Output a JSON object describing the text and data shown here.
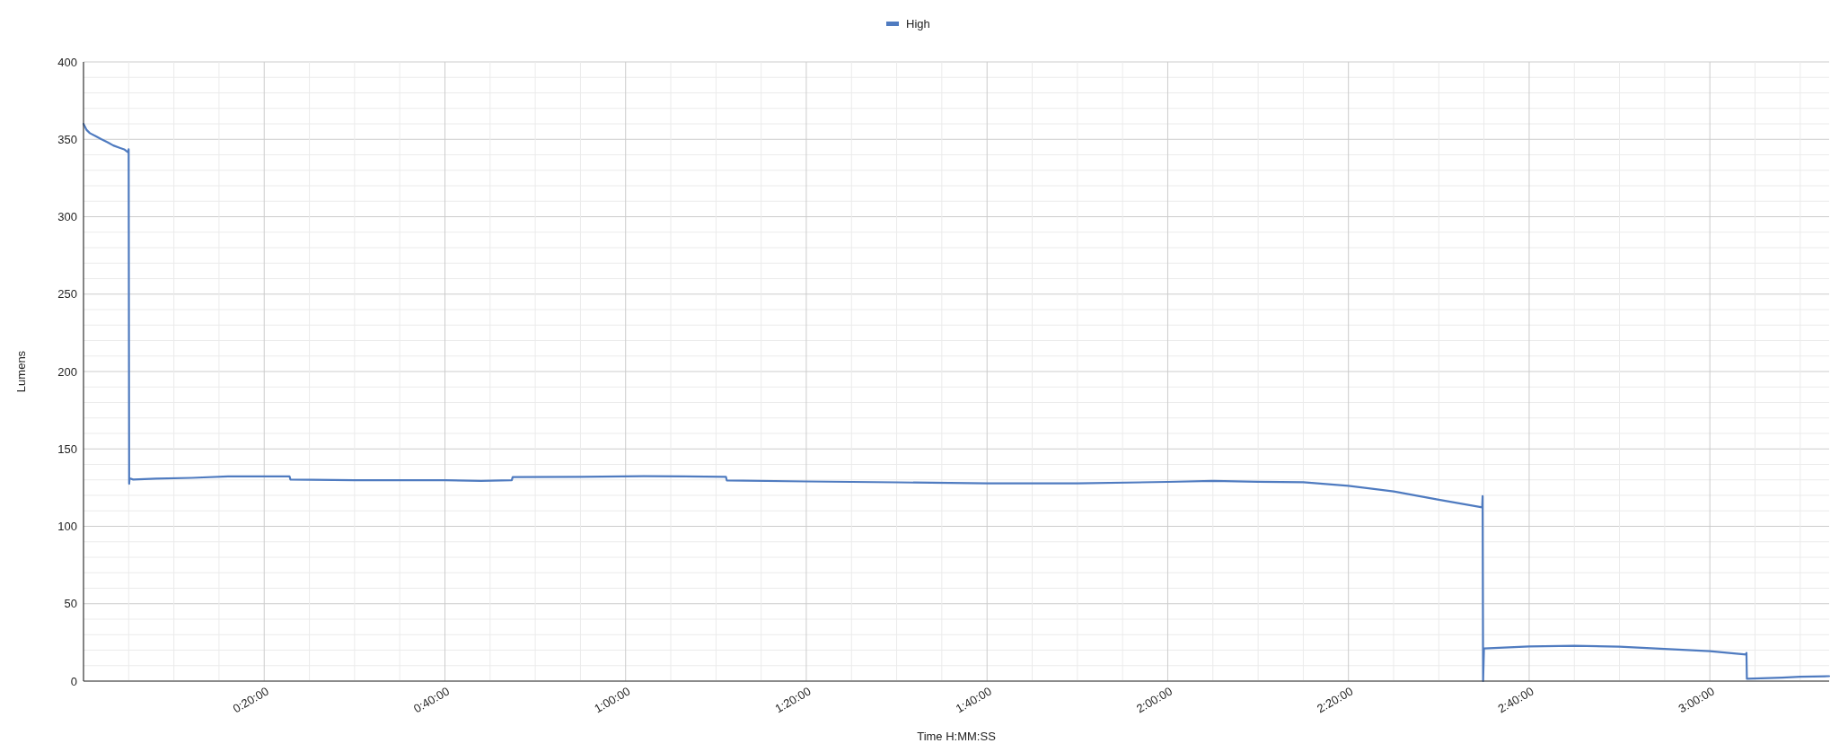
{
  "chart_data": {
    "type": "line",
    "xlabel": "Time H:MM:SS",
    "ylabel": "Lumens",
    "legend": "top",
    "grid": true,
    "xlim": [
      0,
      3.22
    ],
    "ylim": [
      0,
      400
    ],
    "xticks": [
      {
        "value": 0.0833,
        "label": null
      },
      {
        "value": 0.1667,
        "label": null
      },
      {
        "value": 0.25,
        "label": null
      },
      {
        "value": 0.3333,
        "label": "0:20:00"
      },
      {
        "value": 0.4167,
        "label": null
      },
      {
        "value": 0.5,
        "label": null
      },
      {
        "value": 0.5833,
        "label": null
      },
      {
        "value": 0.6667,
        "label": "0:40:00"
      },
      {
        "value": 0.75,
        "label": null
      },
      {
        "value": 0.8333,
        "label": null
      },
      {
        "value": 0.9167,
        "label": null
      },
      {
        "value": 1,
        "label": "1:00:00"
      },
      {
        "value": 1.0833,
        "label": null
      },
      {
        "value": 1.1667,
        "label": null
      },
      {
        "value": 1.25,
        "label": null
      },
      {
        "value": 1.3333,
        "label": "1:20:00"
      },
      {
        "value": 1.4167,
        "label": null
      },
      {
        "value": 1.5,
        "label": null
      },
      {
        "value": 1.5833,
        "label": null
      },
      {
        "value": 1.6667,
        "label": "1:40:00"
      },
      {
        "value": 1.75,
        "label": null
      },
      {
        "value": 1.8333,
        "label": null
      },
      {
        "value": 1.9167,
        "label": null
      },
      {
        "value": 2,
        "label": "2:00:00"
      },
      {
        "value": 2.0833,
        "label": null
      },
      {
        "value": 2.1667,
        "label": null
      },
      {
        "value": 2.25,
        "label": null
      },
      {
        "value": 2.3333,
        "label": "2:20:00"
      },
      {
        "value": 2.4167,
        "label": null
      },
      {
        "value": 2.5,
        "label": null
      },
      {
        "value": 2.5833,
        "label": null
      },
      {
        "value": 2.6667,
        "label": "2:40:00"
      },
      {
        "value": 2.75,
        "label": null
      },
      {
        "value": 2.8333,
        "label": null
      },
      {
        "value": 2.9167,
        "label": null
      },
      {
        "value": 3,
        "label": "3:00:00"
      },
      {
        "value": 3.0833,
        "label": null
      },
      {
        "value": 3.1667,
        "label": null
      }
    ],
    "yticks": [
      0,
      {
        "value": 10,
        "label": null
      },
      {
        "value": 20,
        "label": null
      },
      {
        "value": 30,
        "label": null
      },
      {
        "value": 40,
        "label": null
      },
      50,
      {
        "value": 60,
        "label": null
      },
      {
        "value": 70,
        "label": null
      },
      {
        "value": 80,
        "label": null
      },
      {
        "value": 90,
        "label": null
      },
      100,
      {
        "value": 110,
        "label": null
      },
      {
        "value": 120,
        "label": null
      },
      {
        "value": 130,
        "label": null
      },
      {
        "value": 140,
        "label": null
      },
      150,
      {
        "value": 160,
        "label": null
      },
      {
        "value": 170,
        "label": null
      },
      {
        "value": 180,
        "label": null
      },
      {
        "value": 190,
        "label": null
      },
      200,
      {
        "value": 210,
        "label": null
      },
      {
        "value": 220,
        "label": null
      },
      {
        "value": 230,
        "label": null
      },
      {
        "value": 240,
        "label": null
      },
      250,
      {
        "value": 260,
        "label": null
      },
      {
        "value": 270,
        "label": null
      },
      {
        "value": 280,
        "label": null
      },
      {
        "value": 290,
        "label": null
      },
      300,
      {
        "value": 310,
        "label": null
      },
      {
        "value": 320,
        "label": null
      },
      {
        "value": 330,
        "label": null
      },
      {
        "value": 340,
        "label": null
      },
      350,
      {
        "value": 360,
        "label": null
      },
      {
        "value": 370,
        "label": null
      },
      {
        "value": 380,
        "label": null
      },
      {
        "value": 390,
        "label": null
      },
      400
    ],
    "series": [
      {
        "name": "High",
        "color": "#4f7bc0",
        "x": [
          0,
          0.0058,
          0.0117,
          0.0225,
          0.0333,
          0.045,
          0.055,
          0.0667,
          0.075,
          0.0825,
          0.0833,
          0.0842,
          0.085,
          0.0917,
          0.1333,
          0.2,
          0.2667,
          0.3333,
          0.38,
          0.3817,
          0.5,
          0.6667,
          0.7333,
          0.79,
          0.7917,
          0.9167,
          1.0333,
          1.185,
          1.1867,
          1.3333,
          1.5,
          1.6667,
          1.8333,
          2,
          2.0833,
          2.1667,
          2.25,
          2.3333,
          2.4167,
          2.5,
          2.58,
          2.5808,
          2.5817,
          2.5833,
          2.6667,
          2.75,
          2.8333,
          2.9167,
          3,
          3.0667,
          3.0675,
          3.0683,
          3.1333,
          3.1667,
          3.22
        ],
        "values": [
          360,
          356,
          354,
          352,
          350,
          348,
          346,
          344.5,
          343.5,
          341.5,
          343.5,
          127.5,
          131,
          130.2,
          130.8,
          131.3,
          132.3,
          132.3,
          132.3,
          130.2,
          129.8,
          129.8,
          129.3,
          129.8,
          131.8,
          132,
          132.4,
          132,
          129.6,
          129,
          128.4,
          127.7,
          127.7,
          128.7,
          129.3,
          128.8,
          128.5,
          126.2,
          122.5,
          117.2,
          112.2,
          119.5,
          0,
          21.1,
          22.4,
          22.8,
          22.2,
          20.8,
          19.3,
          17.2,
          18.2,
          1.5,
          2.2,
          2.8,
          3.2
        ]
      }
    ]
  }
}
